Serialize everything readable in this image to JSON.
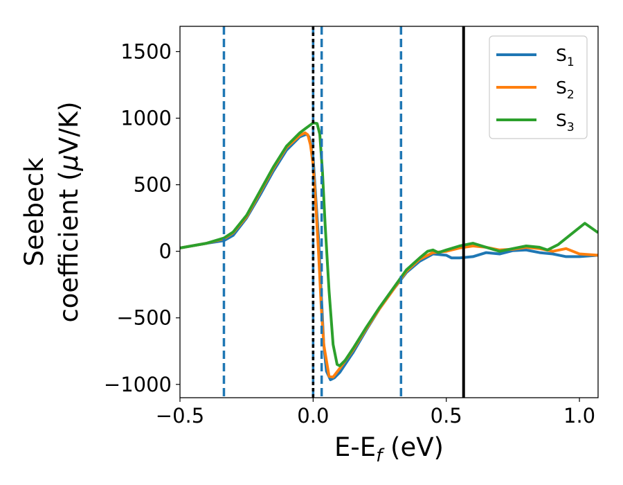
{
  "chart_data": {
    "type": "line",
    "xlabel_main": "E-E",
    "xlabel_sub": "f",
    "xlabel_unit": " (eV)",
    "ylabel_line1": "Seebeck",
    "ylabel_line2_pre": "coefficient  (",
    "ylabel_line2_mu": "μ",
    "ylabel_line2_post": "V/K)",
    "xlim": [
      -0.5,
      1.07
    ],
    "ylim": [
      -1100,
      1690
    ],
    "xticks": [
      -0.5,
      0.0,
      0.5,
      1.0
    ],
    "xtick_labels": [
      "−0.5",
      "0.0",
      "0.5",
      "1.0"
    ],
    "yticks": [
      -1000,
      -500,
      0,
      500,
      1000,
      1500
    ],
    "ytick_labels": [
      "−1000",
      "−500",
      "0",
      "500",
      "1000",
      "1500"
    ],
    "grid": false,
    "legend_position": "top-right",
    "vertical_lines": [
      {
        "x": -0.335,
        "style": "dashed",
        "color": "#1f77b4"
      },
      {
        "x": 0.0,
        "style": "dashed",
        "color": "#1f77b4"
      },
      {
        "x": 0.032,
        "style": "dashed",
        "color": "#1f77b4"
      },
      {
        "x": 0.33,
        "style": "dashed",
        "color": "#1f77b4"
      },
      {
        "x": 0.0,
        "style": "dotted",
        "color": "#000000"
      },
      {
        "x": 0.565,
        "style": "solid",
        "color": "#000000"
      }
    ],
    "series": [
      {
        "name": "S",
        "subscript": "1",
        "color": "#1f77b4",
        "points": [
          [
            -0.5,
            25
          ],
          [
            -0.4,
            60
          ],
          [
            -0.335,
            80
          ],
          [
            -0.3,
            120
          ],
          [
            -0.25,
            250
          ],
          [
            -0.2,
            420
          ],
          [
            -0.15,
            600
          ],
          [
            -0.1,
            760
          ],
          [
            -0.05,
            860
          ],
          [
            -0.025,
            880
          ],
          [
            -0.015,
            860
          ],
          [
            0.0,
            700
          ],
          [
            0.01,
            400
          ],
          [
            0.02,
            100
          ],
          [
            0.03,
            -300
          ],
          [
            0.04,
            -700
          ],
          [
            0.05,
            -900
          ],
          [
            0.065,
            -965
          ],
          [
            0.08,
            -950
          ],
          [
            0.1,
            -910
          ],
          [
            0.15,
            -760
          ],
          [
            0.2,
            -590
          ],
          [
            0.25,
            -430
          ],
          [
            0.3,
            -290
          ],
          [
            0.35,
            -160
          ],
          [
            0.4,
            -75
          ],
          [
            0.45,
            -20
          ],
          [
            0.5,
            -30
          ],
          [
            0.52,
            -50
          ],
          [
            0.55,
            -50
          ],
          [
            0.6,
            -40
          ],
          [
            0.65,
            -10
          ],
          [
            0.7,
            -20
          ],
          [
            0.75,
            5
          ],
          [
            0.8,
            10
          ],
          [
            0.85,
            -10
          ],
          [
            0.9,
            -20
          ],
          [
            0.95,
            -40
          ],
          [
            1.0,
            -40
          ],
          [
            1.07,
            -30
          ]
        ]
      },
      {
        "name": "S",
        "subscript": "2",
        "color": "#ff7f0e",
        "points": [
          [
            -0.5,
            25
          ],
          [
            -0.4,
            60
          ],
          [
            -0.335,
            95
          ],
          [
            -0.3,
            140
          ],
          [
            -0.25,
            260
          ],
          [
            -0.2,
            440
          ],
          [
            -0.15,
            620
          ],
          [
            -0.1,
            780
          ],
          [
            -0.05,
            870
          ],
          [
            -0.03,
            890
          ],
          [
            -0.02,
            875
          ],
          [
            -0.01,
            800
          ],
          [
            0.0,
            650
          ],
          [
            0.01,
            350
          ],
          [
            0.02,
            0
          ],
          [
            0.03,
            -400
          ],
          [
            0.04,
            -700
          ],
          [
            0.06,
            -940
          ],
          [
            0.075,
            -945
          ],
          [
            0.1,
            -880
          ],
          [
            0.15,
            -740
          ],
          [
            0.2,
            -580
          ],
          [
            0.25,
            -430
          ],
          [
            0.3,
            -290
          ],
          [
            0.35,
            -150
          ],
          [
            0.4,
            -60
          ],
          [
            0.45,
            -10
          ],
          [
            0.5,
            0
          ],
          [
            0.55,
            25
          ],
          [
            0.6,
            40
          ],
          [
            0.65,
            30
          ],
          [
            0.7,
            10
          ],
          [
            0.75,
            15
          ],
          [
            0.8,
            30
          ],
          [
            0.85,
            20
          ],
          [
            0.9,
            0
          ],
          [
            0.95,
            20
          ],
          [
            1.0,
            -20
          ],
          [
            1.07,
            -30
          ]
        ]
      },
      {
        "name": "S",
        "subscript": "3",
        "color": "#2ca02c",
        "points": [
          [
            -0.5,
            25
          ],
          [
            -0.4,
            60
          ],
          [
            -0.335,
            100
          ],
          [
            -0.3,
            145
          ],
          [
            -0.25,
            270
          ],
          [
            -0.2,
            450
          ],
          [
            -0.15,
            630
          ],
          [
            -0.1,
            790
          ],
          [
            -0.05,
            890
          ],
          [
            -0.03,
            920
          ],
          [
            -0.01,
            950
          ],
          [
            0.0,
            965
          ],
          [
            0.015,
            960
          ],
          [
            0.025,
            880
          ],
          [
            0.035,
            600
          ],
          [
            0.045,
            200
          ],
          [
            0.06,
            -300
          ],
          [
            0.075,
            -700
          ],
          [
            0.09,
            -850
          ],
          [
            0.1,
            -860
          ],
          [
            0.12,
            -820
          ],
          [
            0.15,
            -730
          ],
          [
            0.2,
            -570
          ],
          [
            0.25,
            -420
          ],
          [
            0.3,
            -280
          ],
          [
            0.35,
            -140
          ],
          [
            0.4,
            -50
          ],
          [
            0.43,
            0
          ],
          [
            0.45,
            10
          ],
          [
            0.47,
            -10
          ],
          [
            0.5,
            10
          ],
          [
            0.55,
            40
          ],
          [
            0.6,
            60
          ],
          [
            0.65,
            30
          ],
          [
            0.7,
            0
          ],
          [
            0.75,
            20
          ],
          [
            0.8,
            40
          ],
          [
            0.85,
            30
          ],
          [
            0.88,
            10
          ],
          [
            0.92,
            50
          ],
          [
            0.97,
            130
          ],
          [
            1.02,
            210
          ],
          [
            1.07,
            140
          ]
        ]
      }
    ]
  }
}
